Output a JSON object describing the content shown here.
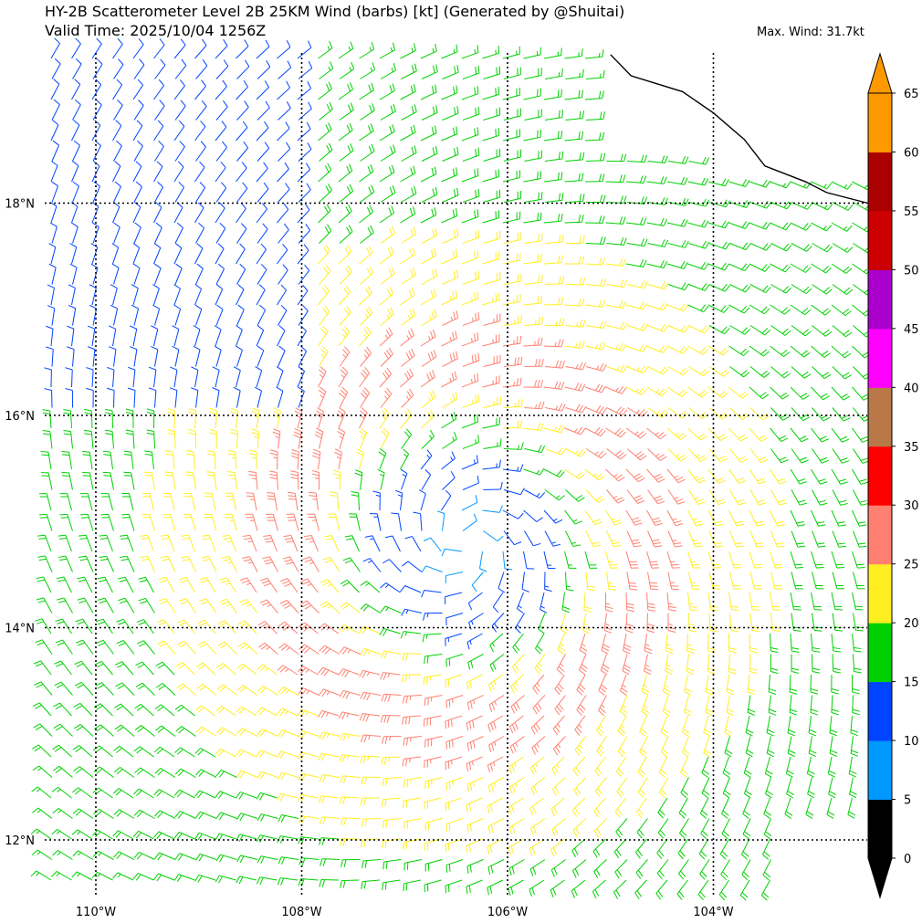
{
  "title_line1": "HY-2B Scatterometer Level 2B 25KM Wind (barbs) [kt] (Generated by @Shuitai)",
  "title_line2": "Valid Time: 2025/10/04 1256Z",
  "max_wind": "Max. Wind: 31.7kt",
  "map": {
    "lon_range": [
      -110.5,
      -102.5
    ],
    "lat_range": [
      11.5,
      19.4
    ],
    "lat_ticks": [
      {
        "value": 18,
        "label": "18°N"
      },
      {
        "value": 16,
        "label": "16°N"
      },
      {
        "value": 14,
        "label": "14°N"
      },
      {
        "value": 12,
        "label": "12°N"
      }
    ],
    "lon_ticks": [
      {
        "value": -110,
        "label": "110°W"
      },
      {
        "value": -108,
        "label": "108°W"
      },
      {
        "value": -106,
        "label": "106°W"
      },
      {
        "value": -104,
        "label": "104°W"
      }
    ],
    "cyclone_center": {
      "lon": -106.4,
      "lat": 14.8
    },
    "coastline": [
      [
        -105.0,
        19.4
      ],
      [
        -104.8,
        19.2
      ],
      [
        -104.3,
        19.05
      ],
      [
        -104.0,
        18.85
      ],
      [
        -103.7,
        18.6
      ],
      [
        -103.5,
        18.35
      ],
      [
        -103.1,
        18.2
      ],
      [
        -102.9,
        18.1
      ],
      [
        -102.5,
        18.0
      ]
    ]
  },
  "colorbar": {
    "ticks": [
      "0",
      "5",
      "10",
      "15",
      "20",
      "25",
      "30",
      "35",
      "40",
      "45",
      "50",
      "55",
      "60",
      "65"
    ],
    "colors": [
      "#000000",
      "#0099ff",
      "#0044ff",
      "#00d000",
      "#ffee22",
      "#ff8070",
      "#ff0000",
      "#b87848",
      "#ff00ff",
      "#aa00cc",
      "#cc0000",
      "#aa0000",
      "#ff9900"
    ]
  }
}
